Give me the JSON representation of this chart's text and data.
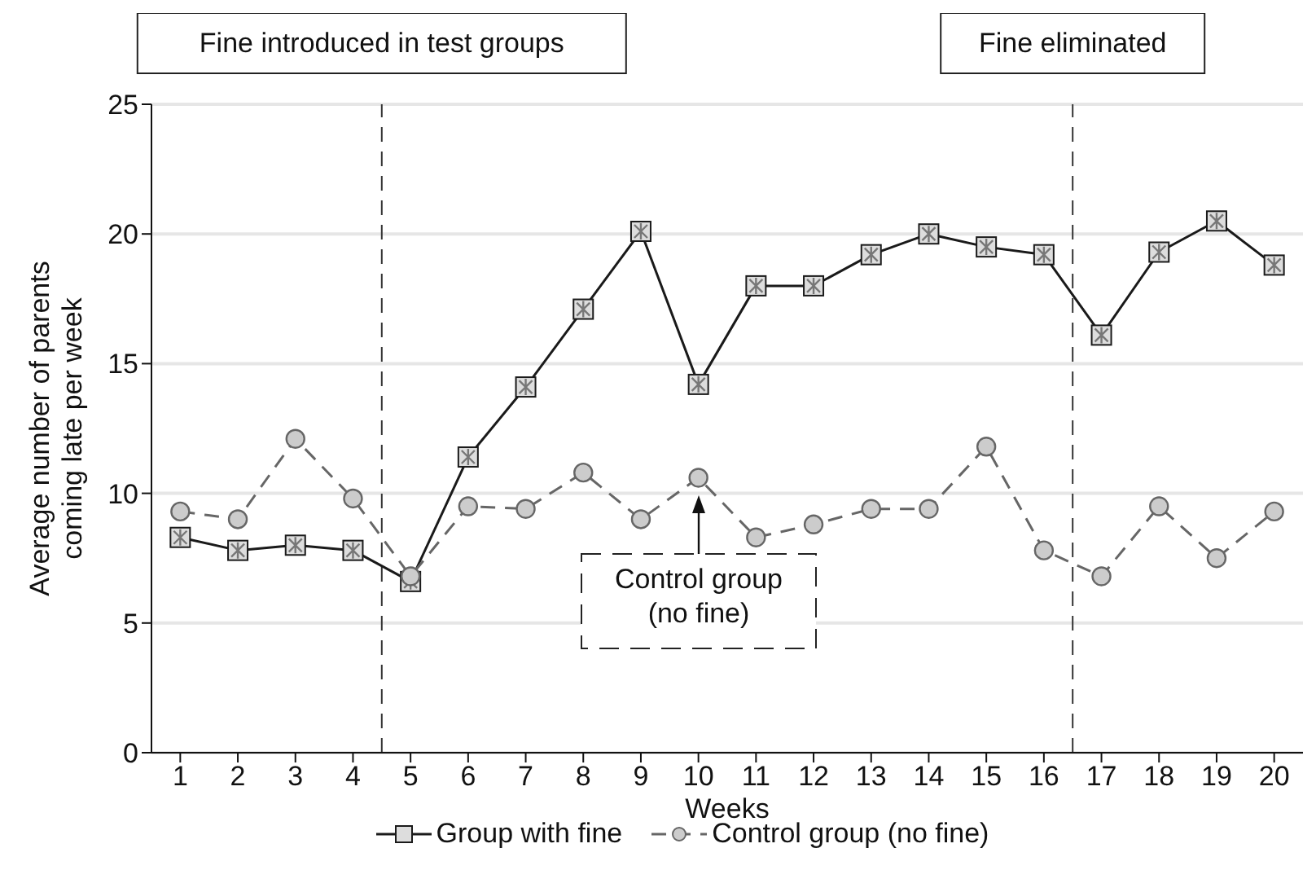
{
  "chart_data": {
    "type": "line",
    "xlabel": "Weeks",
    "ylabel": "Average number of parents coming late per week",
    "x": [
      1,
      2,
      3,
      4,
      5,
      6,
      7,
      8,
      9,
      10,
      11,
      12,
      13,
      14,
      15,
      16,
      17,
      18,
      19,
      20
    ],
    "xlim": [
      0.5,
      20.5
    ],
    "xticks": [
      1,
      2,
      3,
      4,
      5,
      6,
      7,
      8,
      9,
      10,
      11,
      12,
      13,
      14,
      15,
      16,
      17,
      18,
      19,
      20
    ],
    "ylim": [
      0,
      25
    ],
    "yticks": [
      0,
      5,
      10,
      15,
      20,
      25
    ],
    "series": [
      {
        "name": "Group with fine",
        "color": "#1a1a1a",
        "marker": "square",
        "line_style": "solid",
        "values": [
          8.3,
          7.8,
          8.0,
          7.8,
          6.6,
          11.4,
          14.1,
          17.1,
          20.1,
          14.2,
          18.0,
          18.0,
          19.2,
          20.0,
          19.5,
          19.2,
          16.1,
          19.3,
          20.5,
          18.8
        ]
      },
      {
        "name": "Control group (no fine)",
        "color": "#666666",
        "marker": "circle",
        "line_style": "dashed",
        "values": [
          9.3,
          9.0,
          12.1,
          9.8,
          6.8,
          9.5,
          9.4,
          10.8,
          9.0,
          10.6,
          8.3,
          8.8,
          9.4,
          9.4,
          11.8,
          7.8,
          6.8,
          9.5,
          7.5,
          9.3
        ]
      }
    ],
    "ref_lines": [
      {
        "axis": "x",
        "value": 4.5,
        "label": "Fine introduced in test groups",
        "line_style": "dashed",
        "color": "#333333"
      },
      {
        "axis": "x",
        "value": 16.5,
        "label": "Fine eliminated",
        "line_style": "dashed",
        "color": "#333333"
      }
    ],
    "annotations": [
      "Control group (no fine)"
    ],
    "grid": "y",
    "legend": "bottom"
  }
}
